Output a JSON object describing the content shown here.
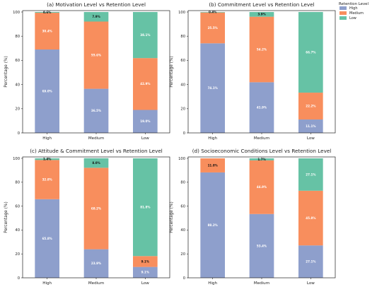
{
  "colors": {
    "High": "#8e9fcc",
    "Medium": "#f88e5d",
    "Low": "#66c2a5",
    "axis": "#222222"
  },
  "legend": {
    "title": "Retention Level",
    "items": [
      "High",
      "Medium",
      "Low"
    ]
  },
  "chart_data": [
    {
      "type": "bar",
      "stacked": true,
      "title": "(a) Motivation Level vs Retention Level",
      "ylabel": "Percentage (%)",
      "xlabel": "",
      "ylim": [
        0,
        100
      ],
      "yticks": [
        0,
        20,
        40,
        60,
        80,
        100
      ],
      "categories": [
        "High",
        "Medium",
        "Low"
      ],
      "series": [
        {
          "name": "High",
          "values": [
            69.0,
            36.5,
            19.0
          ],
          "labels": [
            "69.0%",
            "36.5%",
            "19.0%"
          ]
        },
        {
          "name": "Medium",
          "values": [
            30.4,
            55.6,
            42.9
          ],
          "labels": [
            "30.4%",
            "55.6%",
            "42.9%"
          ]
        },
        {
          "name": "Low",
          "values": [
            0.6,
            7.9,
            38.1
          ],
          "labels": [
            "0.6%",
            "7.9%",
            "38.1%"
          ]
        }
      ]
    },
    {
      "type": "bar",
      "stacked": true,
      "title": "(b) Commitment Level vs Retention Level",
      "ylabel": "Percentage (%)",
      "xlabel": "",
      "ylim": [
        0,
        100
      ],
      "yticks": [
        0,
        20,
        40,
        60,
        80,
        100
      ],
      "categories": [
        "High",
        "Medium",
        "Low"
      ],
      "series": [
        {
          "name": "High",
          "values": [
            74.1,
            41.9,
            11.1
          ],
          "labels": [
            "74.1%",
            "41.9%",
            "11.1%"
          ]
        },
        {
          "name": "Medium",
          "values": [
            25.5,
            54.2,
            22.2
          ],
          "labels": [
            "25.5%",
            "54.2%",
            "22.2%"
          ]
        },
        {
          "name": "Low",
          "values": [
            0.4,
            3.9,
            66.7
          ],
          "labels": [
            "0.4%",
            "3.9%",
            "66.7%"
          ]
        }
      ]
    },
    {
      "type": "bar",
      "stacked": true,
      "title": "(c) Attitude & Commitment Level vs Retention Level",
      "ylabel": "Percentage (%)",
      "xlabel": "",
      "ylim": [
        0,
        100
      ],
      "yticks": [
        0,
        20,
        40,
        60,
        80,
        100
      ],
      "categories": [
        "High",
        "Medium",
        "Low"
      ],
      "series": [
        {
          "name": "High",
          "values": [
            65.8,
            23.9,
            9.1
          ],
          "labels": [
            "65.8%",
            "23.9%",
            "9.1%"
          ]
        },
        {
          "name": "Medium",
          "values": [
            32.8,
            68.2,
            9.1
          ],
          "labels": [
            "32.8%",
            "68.2%",
            "9.1%"
          ]
        },
        {
          "name": "Low",
          "values": [
            1.4,
            8.0,
            81.8
          ],
          "labels": [
            "1.4%",
            "8.0%",
            "81.8%"
          ]
        }
      ]
    },
    {
      "type": "bar",
      "stacked": true,
      "title": "(d) Socioeconomic Conditions Level vs Retention Level",
      "ylabel": "Percentage (%)",
      "xlabel": "",
      "ylim": [
        0,
        100
      ],
      "yticks": [
        0,
        20,
        40,
        60,
        80,
        100
      ],
      "categories": [
        "High",
        "Medium",
        "Low"
      ],
      "series": [
        {
          "name": "High",
          "values": [
            88.2,
            53.4,
            27.1
          ],
          "labels": [
            "88.2%",
            "53.4%",
            "27.1%"
          ]
        },
        {
          "name": "Medium",
          "values": [
            11.8,
            44.9,
            45.8
          ],
          "labels": [
            "11.8%",
            "44.9%",
            "45.8%"
          ]
        },
        {
          "name": "Low",
          "values": [
            0.0,
            1.7,
            27.1
          ],
          "labels": [
            "",
            "1.7%",
            "27.1%"
          ]
        }
      ]
    }
  ]
}
